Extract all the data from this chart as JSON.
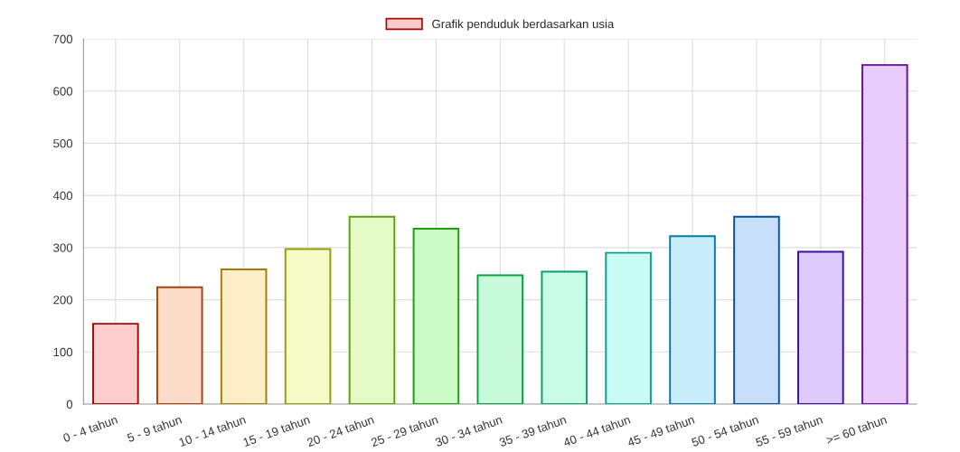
{
  "chart_data": {
    "type": "bar",
    "categories": [
      "0 - 4 tahun",
      "5 - 9 tahun",
      "10 - 14 tahun",
      "15 - 19 tahun",
      "20 - 24 tahun",
      "25 - 29 tahun",
      "30 - 34 tahun",
      "35 - 39 tahun",
      "40 - 44 tahun",
      "45 - 49 tahun",
      "50 - 54 tahun",
      "55 - 59 tahun",
      ">= 60 tahun"
    ],
    "series": [
      {
        "name": "Grafik penduduk berdasarkan usia",
        "colors": [
          "#fdcccc",
          "#fcdcc8",
          "#fcefc8",
          "#f6fbc8",
          "#e4fbc8",
          "#cdfbc8",
          "#c8fbdc",
          "#c8fbe8",
          "#c8fbf4",
          "#c8eefb",
          "#c8dffb",
          "#dccbfb",
          "#e8ccfb"
        ],
        "values": [
          154,
          224,
          258,
          297,
          359,
          336,
          247,
          254,
          290,
          322,
          359,
          292,
          650
        ]
      }
    ],
    "ylim": [
      0,
      700
    ],
    "yticks": [
      0,
      100,
      200,
      300,
      400,
      500,
      600,
      700
    ],
    "grid": true,
    "legend": "top"
  }
}
